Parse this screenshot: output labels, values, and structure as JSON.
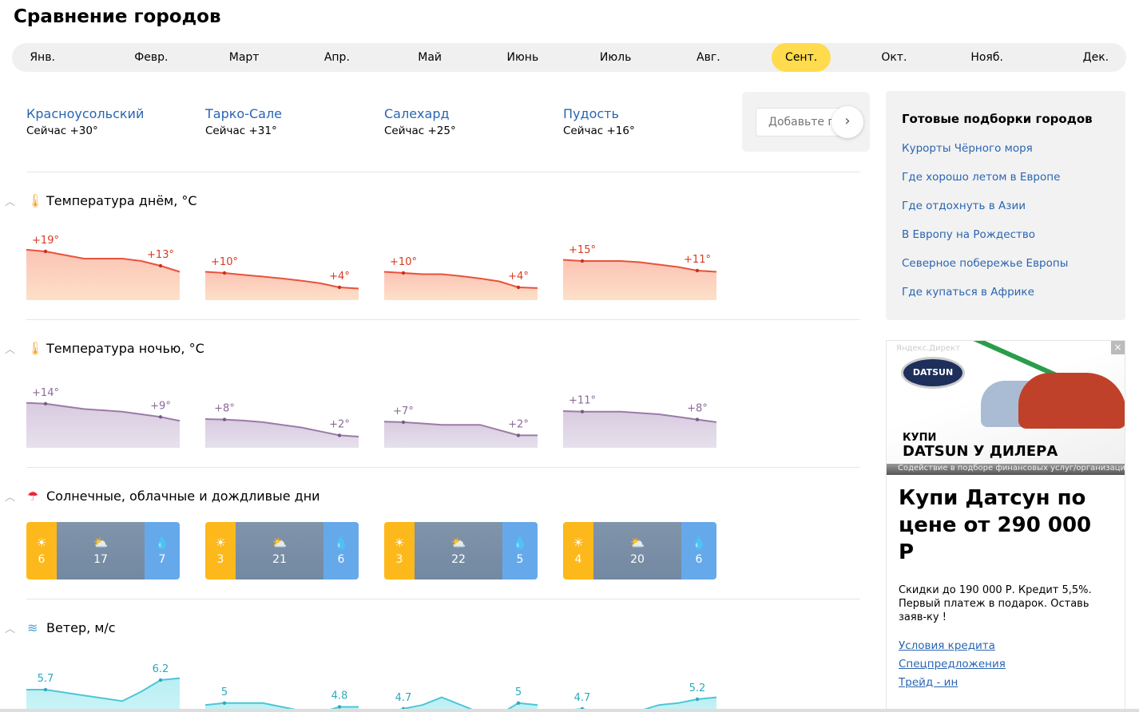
{
  "title": "Сравнение городов",
  "months": [
    {
      "label": "Янв."
    },
    {
      "label": "Февр."
    },
    {
      "label": "Март"
    },
    {
      "label": "Апр."
    },
    {
      "label": "Май"
    },
    {
      "label": "Июнь"
    },
    {
      "label": "Июль"
    },
    {
      "label": "Авг."
    },
    {
      "label": "Сент.",
      "selected": true
    },
    {
      "label": "Окт."
    },
    {
      "label": "Нояб."
    },
    {
      "label": "Дек."
    }
  ],
  "cities": [
    {
      "name": "Красноусольский",
      "now": "Сейчас +30°"
    },
    {
      "name": "Тарко-Сале",
      "now": "Сейчас +31°"
    },
    {
      "name": "Салехард",
      "now": "Сейчас +25°"
    },
    {
      "name": "Пудость",
      "now": "Сейчас +16°"
    }
  ],
  "add_city": {
    "placeholder": "Добавьте город"
  },
  "sections": {
    "day": "Температура днём, °C",
    "night": "Температура ночью, °C",
    "days": "Солнечные, облачные и дождливые дни",
    "wind": "Ветер, м/с"
  },
  "colors": {
    "accent": "#ffdb4d",
    "link": "#2a65b1",
    "day": "#e8533a",
    "night": "#9b7ba6",
    "wind": "#4dc6d6",
    "sun": "#fdb91b",
    "cloud": "#7d91a8",
    "rain": "#66a9ea"
  },
  "chart_data": [
    {
      "type": "area",
      "name": "day",
      "series": [
        {
          "values": [
            19.7,
            19,
            17.5,
            16,
            16,
            16,
            15,
            13,
            10.5
          ],
          "labels": [
            "+19°",
            "+13°"
          ]
        },
        {
          "values": [
            10.5,
            10,
            9.2,
            8.5,
            7.7,
            6.8,
            5.7,
            4,
            3.5
          ],
          "labels": [
            "+10°",
            "+4°"
          ]
        },
        {
          "values": [
            10.5,
            10,
            9.5,
            9.5,
            8.7,
            7.7,
            6.5,
            4,
            3.7
          ],
          "labels": [
            "+10°",
            "+4°"
          ]
        },
        {
          "values": [
            15.5,
            15,
            15,
            15,
            14.5,
            13.5,
            12.5,
            11,
            10.5
          ],
          "labels": [
            "+15°",
            "+11°"
          ]
        }
      ]
    },
    {
      "type": "area",
      "name": "night",
      "series": [
        {
          "values": [
            14.3,
            14,
            13,
            12,
            11.5,
            11,
            10,
            9,
            7.5
          ],
          "labels": [
            "+14°",
            "+9°"
          ]
        },
        {
          "values": [
            8.2,
            8,
            7.6,
            7,
            6,
            5,
            3.5,
            2,
            1.5
          ],
          "labels": [
            "+8°",
            "+2°"
          ]
        },
        {
          "values": [
            7.2,
            7,
            6.5,
            6,
            6,
            6,
            4,
            2,
            2
          ],
          "labels": [
            "+7°",
            "+2°"
          ]
        },
        {
          "values": [
            11.2,
            11,
            11,
            11,
            10.5,
            10,
            9,
            8,
            7
          ],
          "labels": [
            "+11°",
            "+8°"
          ]
        }
      ]
    },
    {
      "type": "bar",
      "name": "days",
      "series": [
        {
          "sunny": 6,
          "cloudy": 17,
          "rainy": 7
        },
        {
          "sunny": 3,
          "cloudy": 21,
          "rainy": 6
        },
        {
          "sunny": 3,
          "cloudy": 22,
          "rainy": 5
        },
        {
          "sunny": 4,
          "cloudy": 20,
          "rainy": 6
        }
      ]
    },
    {
      "type": "area",
      "name": "wind",
      "series": [
        {
          "values": [
            5.7,
            5.7,
            5.55,
            5.4,
            5.25,
            5.1,
            5.6,
            6.2,
            6.3
          ],
          "labels": [
            "5.7",
            "6.2"
          ]
        },
        {
          "values": [
            4.9,
            5,
            5,
            5,
            4.8,
            4.6,
            4.5,
            4.8,
            4.8
          ],
          "labels": [
            "5",
            "4.8"
          ]
        },
        {
          "values": [
            4.5,
            4.7,
            4.9,
            5.3,
            4.9,
            4.5,
            4.4,
            5,
            4.9
          ],
          "labels": [
            "4.7",
            "5"
          ]
        },
        {
          "values": [
            4.6,
            4.7,
            4.5,
            4.5,
            4.6,
            4.9,
            5.0,
            5.2,
            5.3
          ],
          "labels": [
            "4.7",
            "5.2"
          ]
        }
      ]
    }
  ],
  "collections": {
    "title": "Готовые подборки городов",
    "items": [
      "Курорты Чёрного моря",
      "Где хорошо летом в Европе",
      "Где отдохнуть в Азии",
      "В Европу на Рождество",
      "Северное побережье Европы",
      "Где купаться в Африке"
    ]
  },
  "ad": {
    "label": "Яндекс.Директ",
    "logo": "DATSUN",
    "banner_small": "КУПИ",
    "banner_big": "DATSUN У ДИЛЕРА",
    "banner_strip": "Содействие в подборе финансовых услуг/организаций",
    "headline": "Купи Датсун по цене от 290 000 Р",
    "text": "Скидки до 190 000 Р. Кредит 5,5%. Первый платеж в подарок. Оставь заяв-ку !",
    "links": [
      "Условия кредита",
      "Спецпредложения",
      "Трейд - ин"
    ]
  }
}
